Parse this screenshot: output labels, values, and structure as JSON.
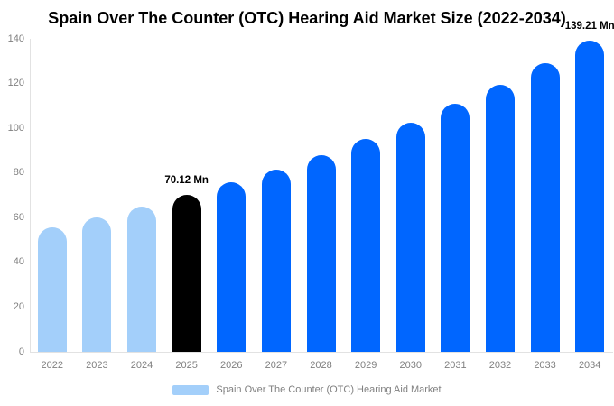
{
  "title": "Spain Over The Counter (OTC) Hearing Aid Market Size (2022-2034)",
  "legend": {
    "label": "Spain Over The Counter (OTC) Hearing Aid Market",
    "swatch_color": "#A3CFFA"
  },
  "colors": {
    "light_blue": "#A3CFFA",
    "highlight_black": "#000000",
    "blue": "#0066FF",
    "axis_text": "#808080",
    "axis_line": "#e2e2e2"
  },
  "chart_data": {
    "type": "bar",
    "title": "Spain Over The Counter (OTC) Hearing Aid Market Size (2022-2034)",
    "xlabel": "",
    "ylabel": "",
    "unit": "Mn",
    "categories": [
      "2022",
      "2023",
      "2024",
      "2025",
      "2026",
      "2027",
      "2028",
      "2029",
      "2030",
      "2031",
      "2032",
      "2033",
      "2034"
    ],
    "values": [
      55.79,
      60.21,
      64.98,
      70.12,
      75.67,
      81.66,
      88.13,
      95.11,
      102.64,
      110.77,
      119.54,
      129.0,
      139.21
    ],
    "value_labels": [
      null,
      null,
      null,
      "70.12 Mn",
      null,
      null,
      null,
      null,
      null,
      null,
      null,
      null,
      "139.21 Mn"
    ],
    "bar_colors": [
      "#A3CFFA",
      "#A3CFFA",
      "#A3CFFA",
      "#000000",
      "#0066FF",
      "#0066FF",
      "#0066FF",
      "#0066FF",
      "#0066FF",
      "#0066FF",
      "#0066FF",
      "#0066FF",
      "#0066FF"
    ],
    "ylim": [
      0,
      140
    ],
    "yticks": [
      0,
      20,
      40,
      60,
      80,
      100,
      120,
      140
    ],
    "grid": false,
    "legend_position": "bottom",
    "legend_entries": [
      "Spain Over The Counter (OTC) Hearing Aid Market"
    ]
  }
}
